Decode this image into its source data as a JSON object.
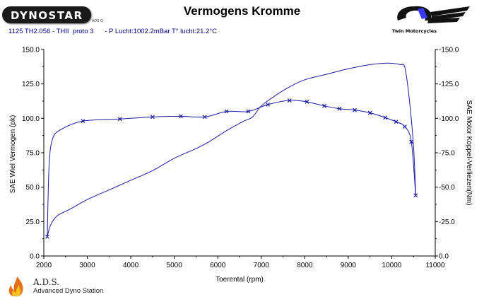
{
  "header": {
    "brand": "DYNOSTAR",
    "brand_sub": "ADS Q",
    "title": "Vermogens Kromme",
    "subtitle": "1125 TH2.056 - THII  proto 3      - P Lucht:1002.2mBar T° lucht:21.2°C",
    "right_brand": "Twin Motorcycles"
  },
  "footer": {
    "ads_name": "A.D.S.",
    "ads_sub": "Advanced Dyno Station"
  },
  "colors": {
    "series": "#1a1aa0",
    "axis": "#000000",
    "text_blue": "#00008b"
  },
  "chart_data": {
    "type": "line",
    "title": "Vermogens Kromme",
    "xlabel": "Toerental (rpm)",
    "ylabel": "SAE Wiel Vermogen (pk)",
    "y2label": "SAE Motor Koppel-Verliezen(Nm)",
    "xlim": [
      2000,
      11000
    ],
    "ylim": [
      0,
      150
    ],
    "y2lim": [
      0,
      150
    ],
    "xticks": [
      2000,
      3000,
      4000,
      5000,
      6000,
      7000,
      8000,
      9000,
      10000,
      11000
    ],
    "xtick_labels": [
      "2000",
      "3000",
      "4000",
      "5000",
      "6000",
      "7000",
      "8000",
      "9000",
      "10000",
      "11000"
    ],
    "yticks": [
      0,
      25,
      50,
      75,
      100,
      125,
      150
    ],
    "ytick_labels": [
      "0.0",
      "25.0",
      "50.0",
      "75.0",
      "100.0",
      "125.0",
      "150.0"
    ],
    "y2tick_labels": [
      "0.0",
      "-25.0",
      "-50.0",
      "-75.0",
      "-100.0",
      "-125.0",
      "-150.0"
    ],
    "grid": false,
    "series": [
      {
        "axis": "left",
        "markers": false,
        "x": [
          2080,
          2150,
          2300,
          2600,
          3000,
          3500,
          4000,
          4500,
          5000,
          5500,
          5800,
          6200,
          6600,
          6800,
          7000,
          7300,
          7600,
          8000,
          8500,
          9000,
          9500,
          9800,
          10000,
          10200,
          10300,
          10400,
          10500,
          10550
        ],
        "y": [
          14,
          22,
          29,
          34,
          41,
          48,
          55,
          62,
          71,
          78,
          83,
          91,
          98,
          101,
          109,
          116,
          122,
          128,
          132,
          136,
          139,
          140,
          140,
          139,
          137,
          115,
          80,
          45
        ]
      },
      {
        "axis": "right",
        "markers": true,
        "x": [
          2080,
          2120,
          2200,
          2400,
          2900,
          3750,
          4500,
          5150,
          5700,
          6200,
          6700,
          7150,
          7650,
          8050,
          8450,
          8800,
          9150,
          9500,
          9850,
          10100,
          10300,
          10450,
          10550
        ],
        "y": [
          14,
          65,
          85,
          92,
          98,
          99.5,
          101,
          101.5,
          101,
          105,
          105,
          110,
          113,
          112,
          109,
          107,
          106,
          104,
          100.5,
          97.5,
          94,
          83,
          44
        ]
      }
    ]
  }
}
